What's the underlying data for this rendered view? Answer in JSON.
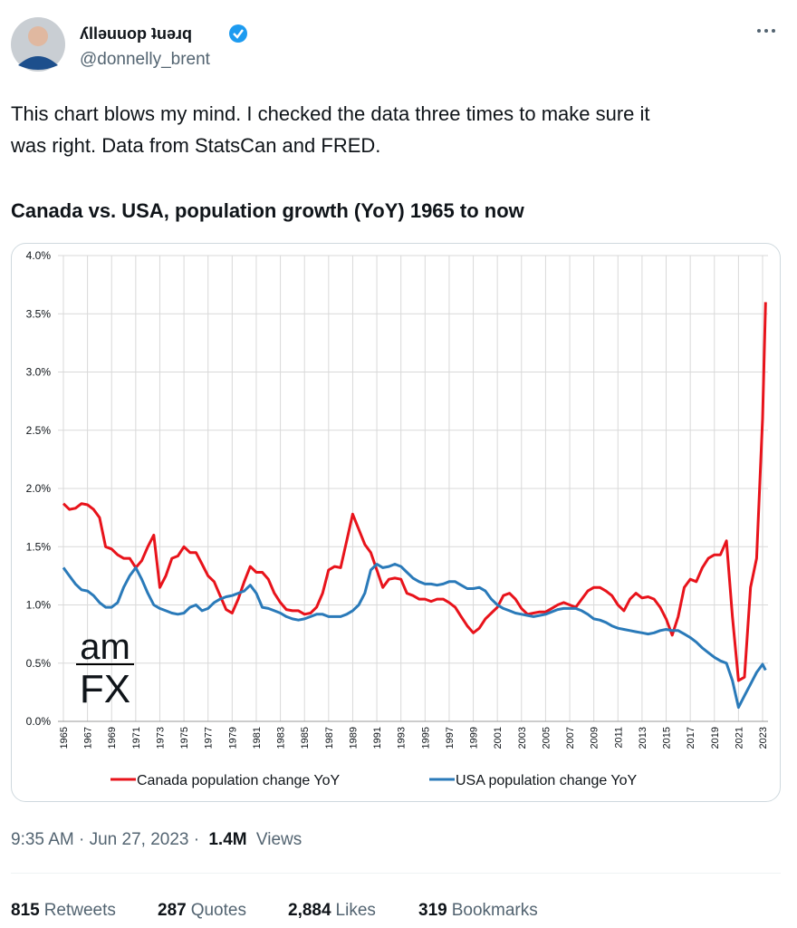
{
  "tweet": {
    "name": "ʎllǝuuop ʇuǝɹq",
    "handle": "@donnelly_brent",
    "text_lines": [
      "This chart blows my mind. I checked the data three times to make sure it",
      "was right. Data from StatsCan and FRED."
    ]
  },
  "chart_data": {
    "type": "line",
    "title": "Canada vs. USA, population growth (YoY) 1965 to now",
    "annotations": [
      "am",
      "FX"
    ],
    "x": [
      1965,
      1965.5,
      1966,
      1966.5,
      1967,
      1967.5,
      1968,
      1968.5,
      1969,
      1969.5,
      1970,
      1970.5,
      1971,
      1971.5,
      1972,
      1972.5,
      1973,
      1973.5,
      1974,
      1974.5,
      1975,
      1975.5,
      1976,
      1976.5,
      1977,
      1977.5,
      1978,
      1978.5,
      1979,
      1979.5,
      1980,
      1980.5,
      1981,
      1981.5,
      1982,
      1982.5,
      1983,
      1983.5,
      1984,
      1984.5,
      1985,
      1985.5,
      1986,
      1986.5,
      1987,
      1987.5,
      1988,
      1988.5,
      1989,
      1989.5,
      1990,
      1990.5,
      1991,
      1991.5,
      1992,
      1992.5,
      1993,
      1993.5,
      1994,
      1994.5,
      1995,
      1995.5,
      1996,
      1996.5,
      1997,
      1997.5,
      1998,
      1998.5,
      1999,
      1999.5,
      2000,
      2000.5,
      2001,
      2001.5,
      2002,
      2002.5,
      2003,
      2003.5,
      2004,
      2004.5,
      2005,
      2005.5,
      2006,
      2006.5,
      2007,
      2007.5,
      2008,
      2008.5,
      2009,
      2009.5,
      2010,
      2010.5,
      2011,
      2011.5,
      2012,
      2012.5,
      2013,
      2013.5,
      2014,
      2014.5,
      2015,
      2015.5,
      2016,
      2016.5,
      2017,
      2017.5,
      2018,
      2018.5,
      2019,
      2019.5,
      2020,
      2020.5,
      2021,
      2021.5,
      2022,
      2022.5,
      2023,
      2023.25
    ],
    "series": [
      {
        "name": "Canada population change YoY",
        "color": "#e8131b",
        "values": [
          1.87,
          1.82,
          1.83,
          1.87,
          1.86,
          1.82,
          1.75,
          1.5,
          1.48,
          1.43,
          1.4,
          1.4,
          1.32,
          1.38,
          1.5,
          1.6,
          1.15,
          1.25,
          1.4,
          1.42,
          1.5,
          1.45,
          1.45,
          1.35,
          1.25,
          1.2,
          1.08,
          0.96,
          0.93,
          1.05,
          1.2,
          1.33,
          1.28,
          1.28,
          1.22,
          1.1,
          1.02,
          0.96,
          0.95,
          0.95,
          0.92,
          0.93,
          0.98,
          1.1,
          1.3,
          1.33,
          1.32,
          1.55,
          1.78,
          1.65,
          1.52,
          1.45,
          1.3,
          1.15,
          1.22,
          1.23,
          1.22,
          1.1,
          1.08,
          1.05,
          1.05,
          1.03,
          1.05,
          1.05,
          1.02,
          0.98,
          0.9,
          0.82,
          0.76,
          0.8,
          0.88,
          0.93,
          0.98,
          1.08,
          1.1,
          1.05,
          0.97,
          0.92,
          0.93,
          0.94,
          0.94,
          0.97,
          1.0,
          1.02,
          1.0,
          0.98,
          1.05,
          1.12,
          1.15,
          1.15,
          1.12,
          1.08,
          1.0,
          0.95,
          1.05,
          1.1,
          1.06,
          1.07,
          1.05,
          0.98,
          0.88,
          0.74,
          0.9,
          1.15,
          1.22,
          1.2,
          1.32,
          1.4,
          1.43,
          1.43,
          1.55,
          0.9,
          0.35,
          0.38,
          1.15,
          1.4,
          2.6,
          3.6
        ]
      },
      {
        "name": "USA population change YoY",
        "color": "#2a7ab9",
        "values": [
          1.32,
          1.25,
          1.18,
          1.13,
          1.12,
          1.08,
          1.02,
          0.98,
          0.98,
          1.02,
          1.15,
          1.25,
          1.32,
          1.22,
          1.1,
          1.0,
          0.97,
          0.95,
          0.93,
          0.92,
          0.93,
          0.98,
          1.0,
          0.95,
          0.97,
          1.02,
          1.05,
          1.07,
          1.08,
          1.1,
          1.12,
          1.17,
          1.1,
          0.98,
          0.97,
          0.95,
          0.93,
          0.9,
          0.88,
          0.87,
          0.88,
          0.9,
          0.92,
          0.92,
          0.9,
          0.9,
          0.9,
          0.92,
          0.95,
          1.0,
          1.1,
          1.3,
          1.35,
          1.32,
          1.33,
          1.35,
          1.33,
          1.28,
          1.23,
          1.2,
          1.18,
          1.18,
          1.17,
          1.18,
          1.2,
          1.2,
          1.17,
          1.14,
          1.14,
          1.15,
          1.12,
          1.05,
          1.0,
          0.97,
          0.95,
          0.93,
          0.92,
          0.91,
          0.9,
          0.91,
          0.92,
          0.94,
          0.96,
          0.97,
          0.97,
          0.97,
          0.95,
          0.92,
          0.88,
          0.87,
          0.85,
          0.82,
          0.8,
          0.79,
          0.78,
          0.77,
          0.76,
          0.75,
          0.76,
          0.78,
          0.79,
          0.78,
          0.78,
          0.75,
          0.72,
          0.68,
          0.63,
          0.59,
          0.55,
          0.52,
          0.5,
          0.35,
          0.12,
          0.22,
          0.32,
          0.42,
          0.49,
          0.44
        ]
      }
    ],
    "xlim": [
      1964.55,
      2023.45
    ],
    "xticks": [
      1965,
      1967,
      1969,
      1971,
      1973,
      1975,
      1977,
      1979,
      1981,
      1983,
      1985,
      1987,
      1989,
      1991,
      1993,
      1995,
      1997,
      1999,
      2001,
      2003,
      2005,
      2007,
      2009,
      2011,
      2013,
      2015,
      2017,
      2019,
      2021,
      2023
    ],
    "ylim": [
      0,
      4
    ],
    "yticks": [
      {
        "value": 0,
        "label": "0.0%"
      },
      {
        "value": 0.5,
        "label": "0.5%"
      },
      {
        "value": 1,
        "label": "1.0%"
      },
      {
        "value": 1.5,
        "label": "1.5%"
      },
      {
        "value": 2,
        "label": "2.0%"
      },
      {
        "value": 2.5,
        "label": "2.5%"
      },
      {
        "value": 3,
        "label": "3.0%"
      },
      {
        "value": 3.5,
        "label": "3.5%"
      },
      {
        "value": 4,
        "label": "4.0%"
      }
    ],
    "grid": true,
    "legend": "bottom"
  },
  "footer": {
    "time": "9:35 AM · Jun 27, 2023 ·",
    "views_count": "1.4M",
    "views_label": "Views",
    "stats": [
      {
        "count": "815",
        "label": "Retweets"
      },
      {
        "count": "287",
        "label": "Quotes"
      },
      {
        "count": "2,884",
        "label": "Likes"
      },
      {
        "count": "319",
        "label": "Bookmarks"
      }
    ]
  }
}
